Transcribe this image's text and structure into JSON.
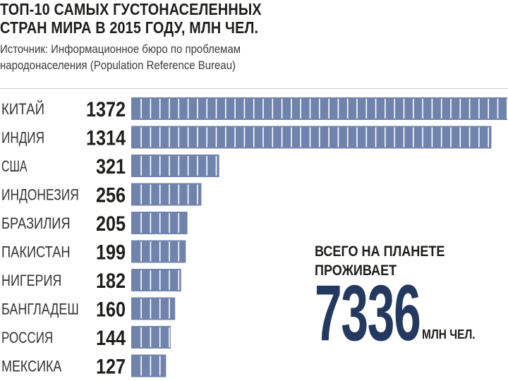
{
  "header": {
    "title": "ТОП-10 САМЫХ ГУСТОНАСЕЛЕННЫХ\nСТРАН МИРА В 2015 ГОДУ, МЛН ЧЕЛ.",
    "source": "Источник: Информационное бюро по проблемам народонаселения (Population Reference Bureau)"
  },
  "total": {
    "label": "ВСЕГО НА ПЛАНЕТЕ ПРОЖИВАЕТ",
    "value": "7336",
    "unit": "МЛН ЧЕЛ."
  },
  "colors": {
    "bar": "#7083ad",
    "bar_divider": "#ffffff",
    "accent": "#24395f"
  },
  "chart_data": {
    "type": "bar",
    "orientation": "horizontal",
    "title": "ТОП-10 САМЫХ ГУСТОНАСЕЛЕННЫХ СТРАН МИРА В 2015 ГОДУ, МЛН ЧЕЛ.",
    "categories": [
      "КИТАЙ",
      "ИНДИЯ",
      "США",
      "ИНДОНЕЗИЯ",
      "БРАЗИЛИЯ",
      "ПАКИСТАН",
      "НИГЕРИЯ",
      "БАНГЛАДЕШ",
      "РОССИЯ",
      "МЕКСИКА"
    ],
    "values": [
      1372,
      1314,
      321,
      256,
      205,
      199,
      182,
      160,
      144,
      127
    ],
    "value_labels": [
      "1372",
      "1314",
      "321",
      "256",
      "205",
      "199",
      "182",
      "160",
      "144",
      "127"
    ],
    "xlim": [
      0,
      1372
    ],
    "grid": false,
    "legend": "none"
  }
}
